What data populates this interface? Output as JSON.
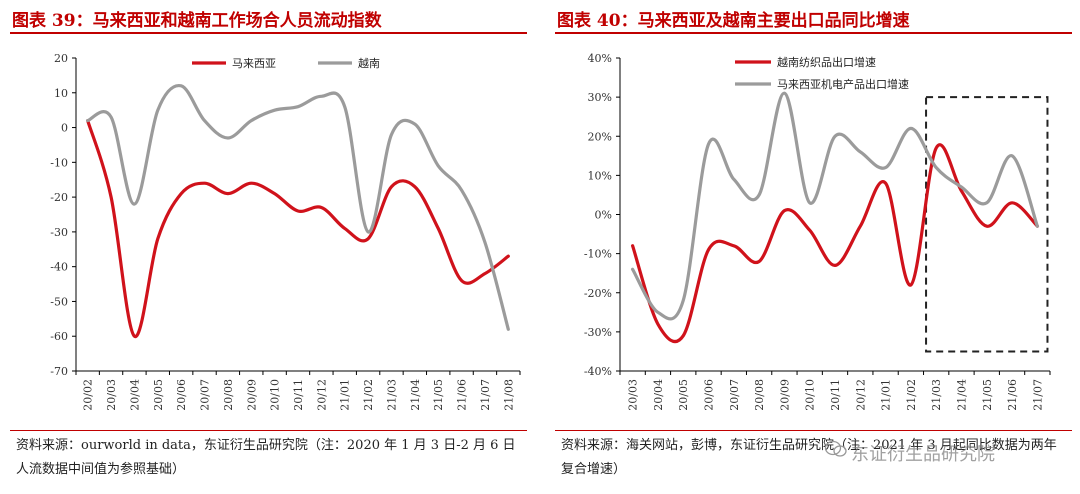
{
  "colors": {
    "accent": "#c00000",
    "series_red": "#d0121b",
    "series_gray": "#9b9b9b",
    "box": "#222222"
  },
  "charts": [
    {
      "title": "图表 39：马来西亚和越南工作场合人员流动指数",
      "note": "资料来源：ourworld in data，东证衍生品研究院（注：2020 年 1 月 3 日-2 月 6 日人流数据中间值为参照基础）"
    },
    {
      "title": "图表 40：马来西亚及越南主要出口品同比增速",
      "note": "资料来源：海关网站，彭博，东证衍生品研究院（注：2021 年 3 月起同比数据为两年复合增速）",
      "watermark": "东证衍生品研究院"
    }
  ],
  "chart_data": [
    {
      "type": "line",
      "title": "图表 39：马来西亚和越南工作场合人员流动指数",
      "categories": [
        "20/02",
        "20/03",
        "20/04",
        "20/05",
        "20/06",
        "20/07",
        "20/08",
        "20/09",
        "20/10",
        "20/11",
        "20/12",
        "21/01",
        "21/02",
        "21/03",
        "21/04",
        "21/05",
        "21/06",
        "21/07",
        "21/08"
      ],
      "ylim": [
        -70,
        20
      ],
      "yticks": [
        20,
        10,
        0,
        -10,
        -20,
        -30,
        -40,
        -50,
        -60,
        -70
      ],
      "legend_position": "top",
      "series": [
        {
          "name": "马来西亚",
          "color": "#d0121b",
          "values": [
            2,
            -20,
            -60,
            -32,
            -19,
            -16,
            -19,
            -16,
            -19,
            -24,
            -23,
            -29,
            -32,
            -17,
            -17,
            -29,
            -44,
            -42,
            -37
          ]
        },
        {
          "name": "越南",
          "color": "#9b9b9b",
          "values": [
            2,
            3,
            -22,
            5,
            12,
            2,
            -3,
            2,
            5,
            6,
            9,
            6,
            -30,
            -2,
            1,
            -11,
            -18,
            -33,
            -58
          ]
        }
      ]
    },
    {
      "type": "line",
      "title": "图表 40：马来西亚及越南主要出口品同比增速",
      "categories": [
        "20/03",
        "20/04",
        "20/05",
        "20/06",
        "20/07",
        "20/08",
        "20/09",
        "20/10",
        "20/11",
        "20/12",
        "21/01",
        "21/02",
        "21/03",
        "21/04",
        "21/05",
        "21/06",
        "21/07"
      ],
      "ylim": [
        -40,
        40
      ],
      "yticks": [
        "40%",
        "30%",
        "20%",
        "10%",
        "0%",
        "-10%",
        "-20%",
        "-30%",
        "-40%"
      ],
      "ytick_values": [
        40,
        30,
        20,
        10,
        0,
        -10,
        -20,
        -30,
        -40
      ],
      "legend_position": "top",
      "highlight_range": {
        "from": "21/03",
        "to": "21/07",
        "y_from": 30,
        "y_to": -35
      },
      "series": [
        {
          "name": "越南纺织品出口增速",
          "color": "#d0121b",
          "values": [
            -8,
            -28,
            -31,
            -9,
            -8,
            -12,
            1,
            -4,
            -13,
            -3,
            8,
            -18,
            17,
            6,
            -3,
            3,
            -3
          ]
        },
        {
          "name": "马来西亚机电产品出口增速",
          "color": "#9b9b9b",
          "values": [
            -14,
            -25,
            -22,
            18,
            9,
            5,
            31,
            3,
            20,
            16,
            12,
            22,
            12,
            7,
            3,
            15,
            -3
          ]
        }
      ]
    }
  ]
}
